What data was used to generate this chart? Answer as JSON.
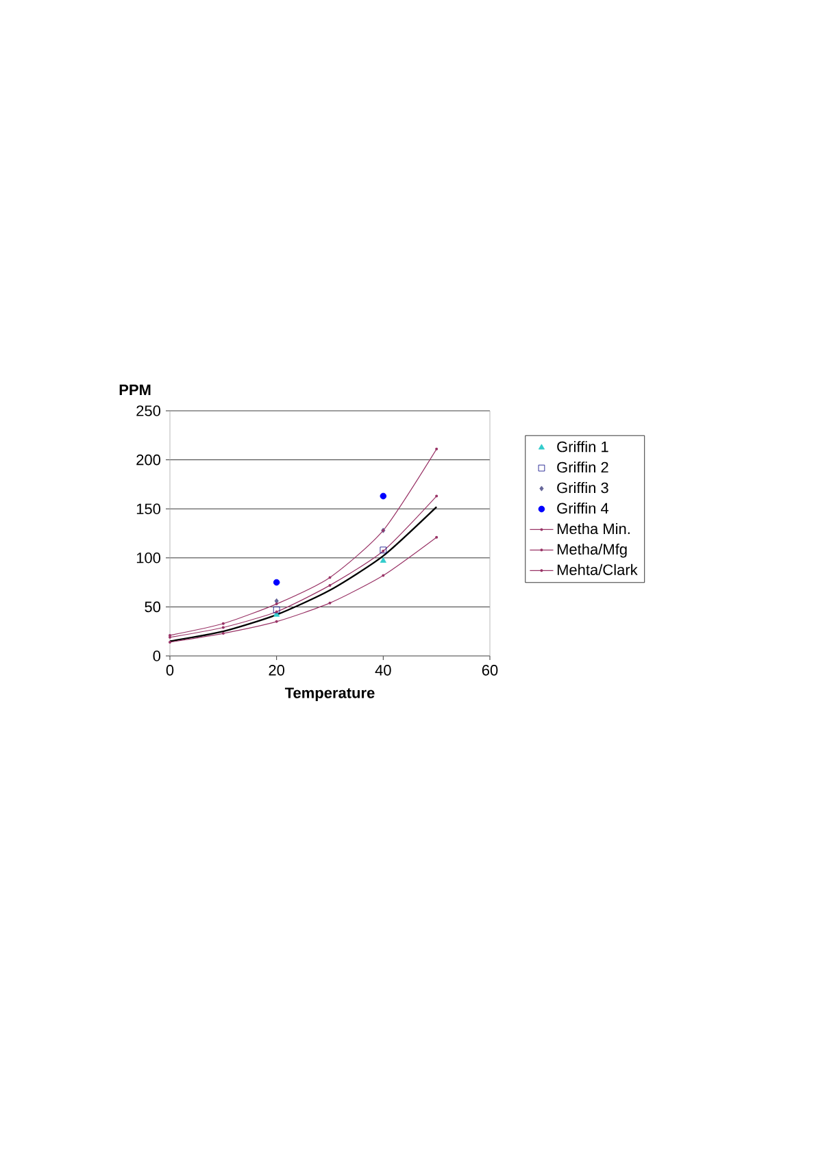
{
  "chart_data": {
    "type": "line",
    "xlabel": "Temperature",
    "ylabel": "PPM",
    "xlim": [
      0,
      60
    ],
    "xticks": [
      0,
      20,
      40,
      60
    ],
    "ylim": [
      0,
      250
    ],
    "yticks": [
      0,
      50,
      100,
      150,
      200,
      250
    ],
    "grid": "y",
    "legend": "right",
    "series": [
      {
        "color": "#000000",
        "marker": "none",
        "x": [
          0,
          10,
          20,
          30,
          40,
          50
        ],
        "values": [
          15,
          25,
          42,
          67,
          102,
          152
        ]
      },
      {
        "type": "scatter",
        "name": "Griffin 1",
        "color": "#33cccc",
        "marker": "triangle",
        "x": [
          20,
          40
        ],
        "values": [
          42,
          97
        ]
      },
      {
        "type": "scatter",
        "name": "Griffin 2",
        "color": "#000080",
        "marker": "square",
        "x": [
          20,
          40
        ],
        "values": [
          47,
          108
        ]
      },
      {
        "type": "scatter",
        "name": "Griffin 3",
        "color": "#666699",
        "marker": "diamond",
        "x": [
          20,
          40
        ],
        "values": [
          56,
          128
        ]
      },
      {
        "type": "scatter",
        "name": "Griffin 4",
        "color": "#0000ff",
        "marker": "circle",
        "x": [
          20,
          40
        ],
        "values": [
          75,
          163
        ]
      },
      {
        "name": "Metha Min.",
        "color": "#993366",
        "marker": "circle",
        "x": [
          0,
          10,
          20,
          30,
          40,
          50
        ],
        "values": [
          14,
          23,
          35,
          54,
          82,
          121
        ]
      },
      {
        "name": "Metha/Mfg",
        "color": "#993366",
        "marker": "circle",
        "x": [
          0,
          10,
          20,
          30,
          40,
          50
        ],
        "values": [
          19,
          29,
          45,
          72,
          107,
          163
        ]
      },
      {
        "name": "Mehta/Clark",
        "color": "#993366",
        "marker": "circle",
        "x": [
          0,
          10,
          20,
          30,
          40,
          50
        ],
        "values": [
          21,
          33,
          53,
          80,
          128,
          211
        ]
      }
    ]
  }
}
